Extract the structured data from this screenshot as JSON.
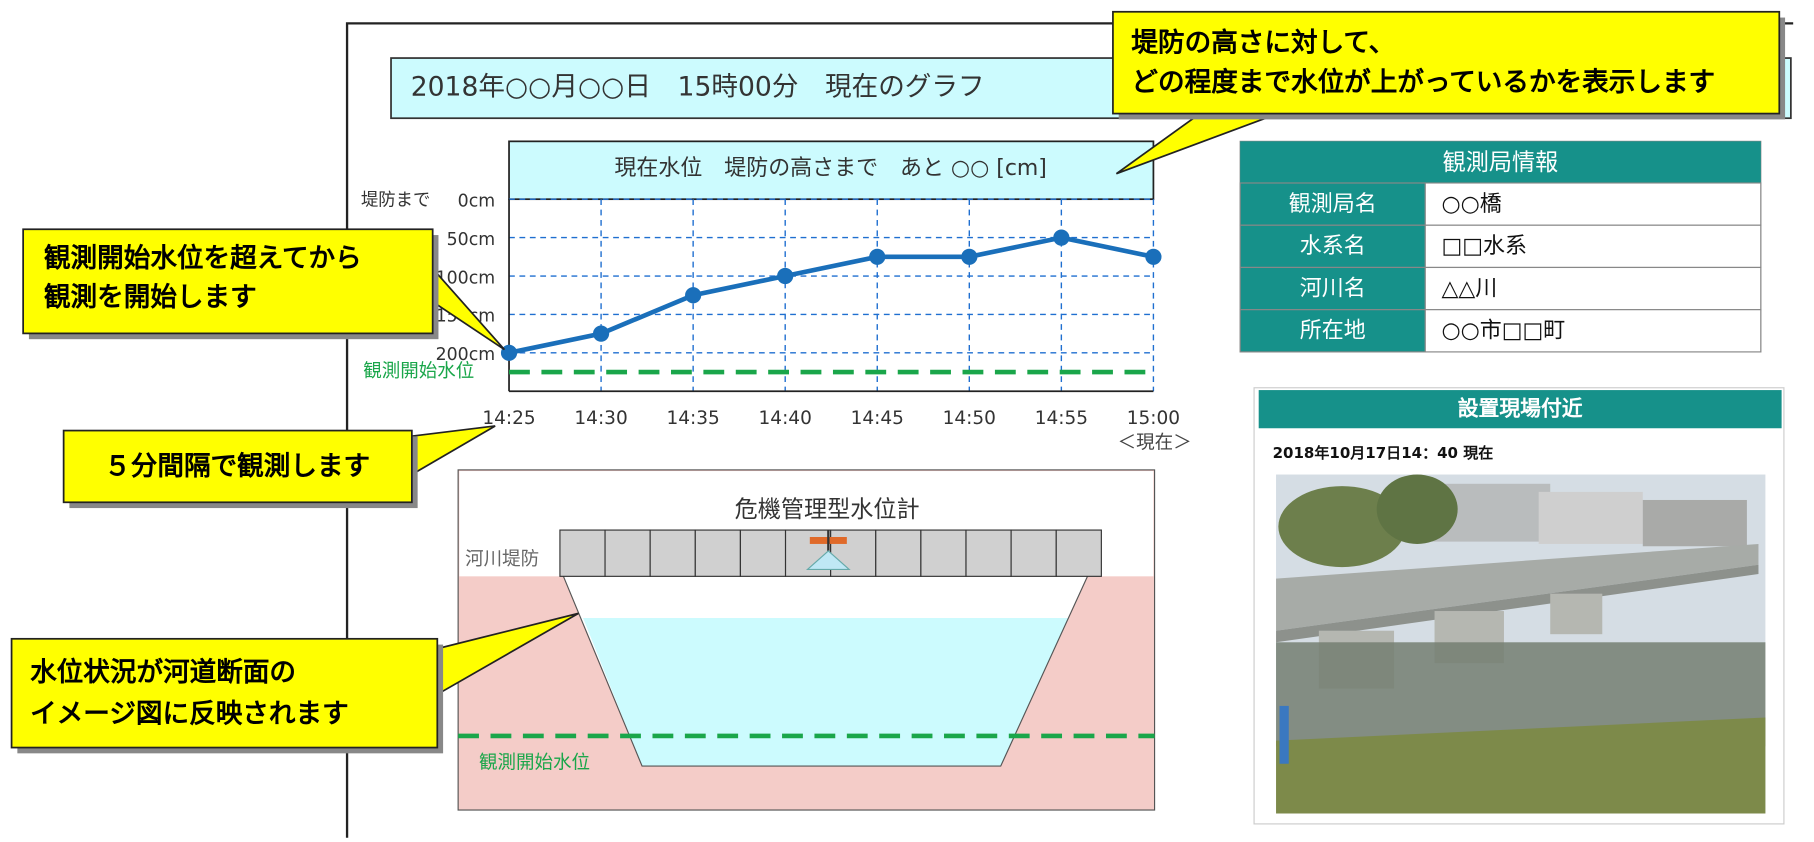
{
  "header": {
    "title": "2018年○○月○○日　15時00分　現在のグラフ"
  },
  "chart_data": {
    "type": "line",
    "title": "現在水位　堤防の高さまで　あと ○○ [cm]",
    "y_label": "堤防まで",
    "categories": [
      "14:25",
      "14:30",
      "14:35",
      "14:40",
      "14:45",
      "14:50",
      "14:55",
      "15:00"
    ],
    "x_note": "＜現在＞",
    "values": [
      200,
      175,
      125,
      100,
      75,
      75,
      50,
      75
    ],
    "color": "#1a6fba",
    "ylim": [
      250,
      0
    ],
    "yticks": [
      {
        "value": 0,
        "label": "0cm"
      },
      {
        "value": 50,
        "label": "50cm"
      },
      {
        "value": 100,
        "label": "100cm"
      },
      {
        "value": 150,
        "label": "150cm"
      },
      {
        "value": 200,
        "label": "200cm"
      }
    ],
    "grid": true,
    "reference_line": {
      "label": "観測開始水位",
      "value": 225,
      "color": "#1aa64a"
    }
  },
  "station_info": {
    "title": "観測局情報",
    "rows": [
      [
        "観測局名",
        "○○橋"
      ],
      [
        "水系名",
        "□□水系"
      ],
      [
        "河川名",
        "△△川"
      ],
      [
        "所在地",
        "○○市□□町"
      ]
    ]
  },
  "photo": {
    "title": "設置現場付近",
    "caption": "2018年10月17日14：40 現在"
  },
  "cross_section": {
    "title": "危機管理型水位計",
    "levee_label": "河川堤防",
    "start_level_label": "観測開始水位"
  },
  "callouts": [
    {
      "lines": [
        "観測開始水位を超えてから",
        "観測を開始します"
      ]
    },
    {
      "lines": [
        "５分間隔で観測します"
      ]
    },
    {
      "lines": [
        "水位状況が河道断面の",
        "イメージ図に反映されます"
      ]
    },
    {
      "lines": [
        "堤防の高さに対して、",
        "どの程度まで水位が上がっているかを表示します"
      ]
    }
  ]
}
